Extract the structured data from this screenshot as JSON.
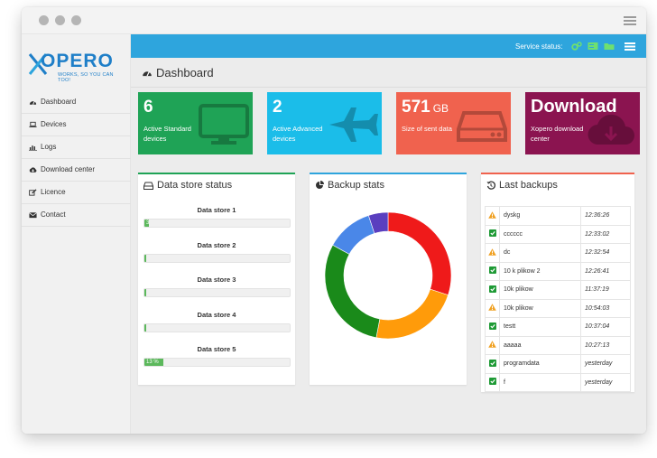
{
  "window": {
    "controls": [
      "close-dot",
      "minimize-dot",
      "maximize-dot"
    ]
  },
  "brand": {
    "name": "XOPERO",
    "tagline": "WORKS, SO YOU CAN TOO!",
    "color": "#1f7fc8"
  },
  "sidebar": {
    "items": [
      {
        "label": "Dashboard",
        "icon": "dashboard-icon"
      },
      {
        "label": "Devices",
        "icon": "laptop-icon"
      },
      {
        "label": "Logs",
        "icon": "bar-chart-icon"
      },
      {
        "label": "Download center",
        "icon": "cloud-download-icon"
      },
      {
        "label": "Licence",
        "icon": "edit-icon"
      },
      {
        "label": "Contact",
        "icon": "envelope-icon"
      }
    ]
  },
  "topbar": {
    "status_label": "Service status:",
    "status_color": "#6fe06f",
    "color": "#2ea5dd"
  },
  "page": {
    "title": "Dashboard"
  },
  "tiles": [
    {
      "number": "6",
      "unit": "",
      "label": "Active Standard devices",
      "color": "#1fa356",
      "icon": "monitor-icon"
    },
    {
      "number": "2",
      "unit": "",
      "label": "Active Advanced devices",
      "color": "#1bbde9",
      "icon": "jet-icon"
    },
    {
      "number": "571",
      "unit": "GB",
      "label": "Size of sent data",
      "color": "#f0624e",
      "icon": "hard-drive-icon"
    },
    {
      "number": "Download",
      "unit": "",
      "label": "Xopero download center",
      "color": "#8b1450",
      "icon": "cloud-download-icon"
    }
  ],
  "data_store": {
    "title": "Data store status",
    "border_color": "#1fa356",
    "stores": [
      {
        "name": "Data store 1",
        "percent": 3,
        "text": "3"
      },
      {
        "name": "Data store 2",
        "percent": 0,
        "text": ""
      },
      {
        "name": "Data store 3",
        "percent": 0,
        "text": ""
      },
      {
        "name": "Data store 4",
        "percent": 0,
        "text": ""
      },
      {
        "name": "Data store 5",
        "percent": 13,
        "text": "13 %"
      }
    ]
  },
  "backup_stats": {
    "title": "Backup stats",
    "border_color": "#2ea5dd",
    "chart_data": {
      "type": "pie",
      "donut": true,
      "slices": [
        {
          "value": 30,
          "color": "#ef1a1a"
        },
        {
          "value": 23,
          "color": "#ff9b0a"
        },
        {
          "value": 30,
          "color": "#1a8a1a"
        },
        {
          "value": 12,
          "color": "#4a87e8"
        },
        {
          "value": 5,
          "color": "#5a3fbf"
        }
      ]
    }
  },
  "last_backups": {
    "title": "Last backups",
    "border_color": "#f0624e",
    "rows": [
      {
        "status": "warning",
        "name": "dyskg",
        "time": "12:36:26"
      },
      {
        "status": "success",
        "name": "cccccc",
        "time": "12:33:02"
      },
      {
        "status": "warning",
        "name": "dc",
        "time": "12:32:54"
      },
      {
        "status": "success",
        "name": "10 k plikow 2",
        "time": "12:26:41"
      },
      {
        "status": "success",
        "name": "10k plikow",
        "time": "11:37:19"
      },
      {
        "status": "warning",
        "name": "10k plikow",
        "time": "10:54:03"
      },
      {
        "status": "success",
        "name": "testt",
        "time": "10:37:04"
      },
      {
        "status": "warning",
        "name": "aaaaa",
        "time": "10:27:13"
      },
      {
        "status": "success",
        "name": "programdata",
        "time": "yesterday"
      },
      {
        "status": "success",
        "name": "f",
        "time": "yesterday"
      }
    ]
  }
}
